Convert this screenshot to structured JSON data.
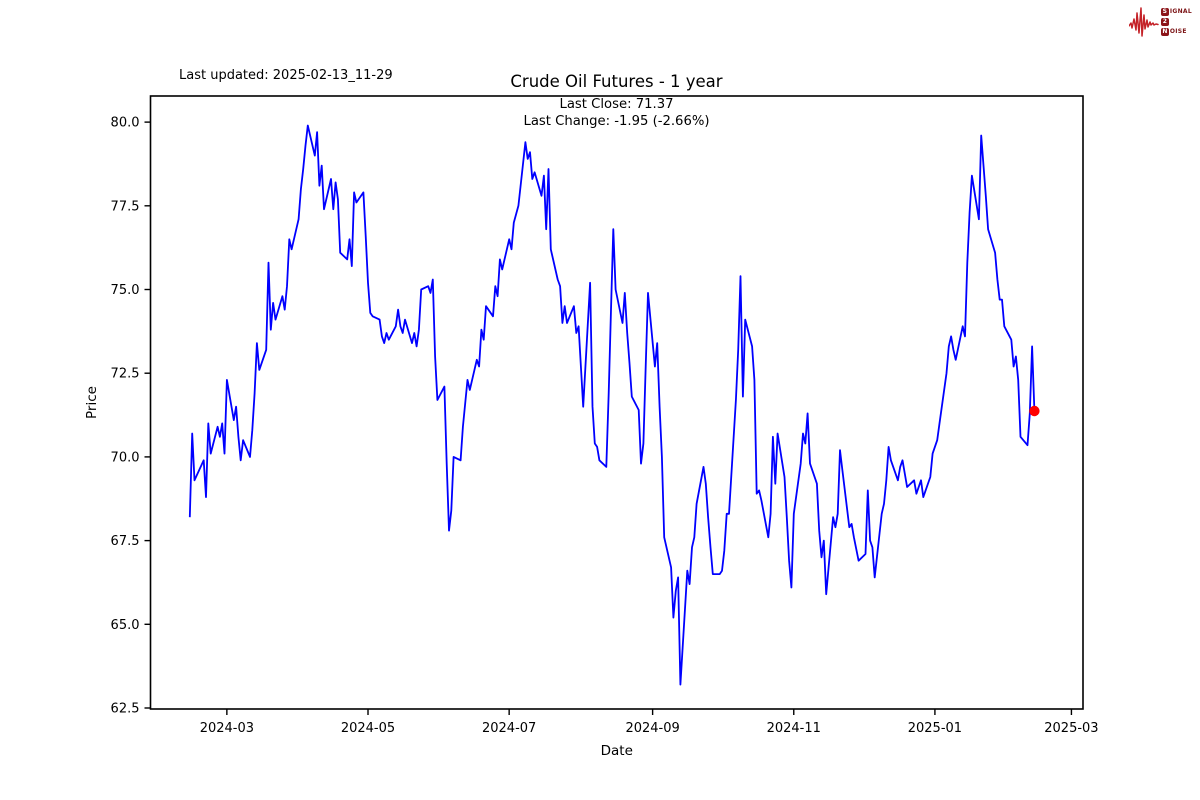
{
  "header": {
    "last_updated": "Last updated: 2025-02-13_11-29",
    "title": "Crude Oil Futures - 1 year"
  },
  "logo": {
    "s": "S",
    "ignal": "IGNAL",
    "two": "2",
    "n": "N",
    "oise": "OISE",
    "waveform_color": "#c42127",
    "box_color": "#8c1519",
    "text_color": "#7c1416"
  },
  "chart_data": {
    "type": "line",
    "title": "Crude Oil Futures - 1 year",
    "xlabel": "Date",
    "ylabel": "Price",
    "annotations": [
      "Last Close: 71.37",
      "Last Change: -1.95 (-2.66%)"
    ],
    "last_close": 71.37,
    "last_change": "-1.95 (-2.66%)",
    "line_color": "#0000ff",
    "marker_color": "#ff0000",
    "axis_color": "#000000",
    "grid": false,
    "legend": "none",
    "x_ticks": [
      "2024-03",
      "2024-05",
      "2024-07",
      "2024-09",
      "2024-11",
      "2025-01",
      "2025-03"
    ],
    "y_ticks": [
      62.5,
      65.0,
      67.5,
      70.0,
      72.5,
      75.0,
      77.5,
      80.0
    ],
    "xlim": [
      "2024-01-28",
      "2025-03-06"
    ],
    "ylim": [
      62.47,
      80.78
    ],
    "series": [
      {
        "name": "price",
        "points": [
          [
            "2024-02-14",
            68.2
          ],
          [
            "2024-02-15",
            70.7
          ],
          [
            "2024-02-16",
            69.3
          ],
          [
            "2024-02-20",
            69.9
          ],
          [
            "2024-02-21",
            68.8
          ],
          [
            "2024-02-22",
            71.0
          ],
          [
            "2024-02-23",
            70.1
          ],
          [
            "2024-02-26",
            70.9
          ],
          [
            "2024-02-27",
            70.6
          ],
          [
            "2024-02-28",
            71.0
          ],
          [
            "2024-02-29",
            70.1
          ],
          [
            "2024-03-01",
            72.3
          ],
          [
            "2024-03-04",
            71.1
          ],
          [
            "2024-03-05",
            71.5
          ],
          [
            "2024-03-06",
            70.6
          ],
          [
            "2024-03-07",
            69.9
          ],
          [
            "2024-03-08",
            70.5
          ],
          [
            "2024-03-11",
            70.0
          ],
          [
            "2024-03-12",
            70.8
          ],
          [
            "2024-03-13",
            71.9
          ],
          [
            "2024-03-14",
            73.4
          ],
          [
            "2024-03-15",
            72.6
          ],
          [
            "2024-03-18",
            73.2
          ],
          [
            "2024-03-19",
            75.8
          ],
          [
            "2024-03-20",
            73.8
          ],
          [
            "2024-03-21",
            74.6
          ],
          [
            "2024-03-22",
            74.1
          ],
          [
            "2024-03-25",
            74.8
          ],
          [
            "2024-03-26",
            74.4
          ],
          [
            "2024-03-27",
            75.1
          ],
          [
            "2024-03-28",
            76.5
          ],
          [
            "2024-03-29",
            76.2
          ],
          [
            "2024-04-01",
            77.1
          ],
          [
            "2024-04-02",
            78.0
          ],
          [
            "2024-04-03",
            78.6
          ],
          [
            "2024-04-04",
            79.3
          ],
          [
            "2024-04-05",
            79.9
          ],
          [
            "2024-04-08",
            79.0
          ],
          [
            "2024-04-09",
            79.7
          ],
          [
            "2024-04-10",
            78.1
          ],
          [
            "2024-04-11",
            78.7
          ],
          [
            "2024-04-12",
            77.4
          ],
          [
            "2024-04-15",
            78.3
          ],
          [
            "2024-04-16",
            77.4
          ],
          [
            "2024-04-17",
            78.2
          ],
          [
            "2024-04-18",
            77.7
          ],
          [
            "2024-04-19",
            76.1
          ],
          [
            "2024-04-22",
            75.9
          ],
          [
            "2024-04-23",
            76.5
          ],
          [
            "2024-04-24",
            75.7
          ],
          [
            "2024-04-25",
            77.9
          ],
          [
            "2024-04-26",
            77.6
          ],
          [
            "2024-04-29",
            77.9
          ],
          [
            "2024-04-30",
            76.6
          ],
          [
            "2024-05-01",
            75.2
          ],
          [
            "2024-05-02",
            74.3
          ],
          [
            "2024-05-03",
            74.2
          ],
          [
            "2024-05-06",
            74.1
          ],
          [
            "2024-05-07",
            73.6
          ],
          [
            "2024-05-08",
            73.4
          ],
          [
            "2024-05-09",
            73.7
          ],
          [
            "2024-05-10",
            73.5
          ],
          [
            "2024-05-13",
            73.9
          ],
          [
            "2024-05-14",
            74.4
          ],
          [
            "2024-05-15",
            73.9
          ],
          [
            "2024-05-16",
            73.7
          ],
          [
            "2024-05-17",
            74.1
          ],
          [
            "2024-05-20",
            73.4
          ],
          [
            "2024-05-21",
            73.7
          ],
          [
            "2024-05-22",
            73.3
          ],
          [
            "2024-05-23",
            73.8
          ],
          [
            "2024-05-24",
            75.0
          ],
          [
            "2024-05-27",
            75.1
          ],
          [
            "2024-05-28",
            74.9
          ],
          [
            "2024-05-29",
            75.3
          ],
          [
            "2024-05-30",
            73.0
          ],
          [
            "2024-05-31",
            71.7
          ],
          [
            "2024-06-03",
            72.1
          ],
          [
            "2024-06-04",
            69.8
          ],
          [
            "2024-06-05",
            67.8
          ],
          [
            "2024-06-06",
            68.4
          ],
          [
            "2024-06-07",
            70.0
          ],
          [
            "2024-06-10",
            69.9
          ],
          [
            "2024-06-11",
            70.9
          ],
          [
            "2024-06-12",
            71.6
          ],
          [
            "2024-06-13",
            72.3
          ],
          [
            "2024-06-14",
            72.0
          ],
          [
            "2024-06-17",
            72.9
          ],
          [
            "2024-06-18",
            72.7
          ],
          [
            "2024-06-19",
            73.8
          ],
          [
            "2024-06-20",
            73.5
          ],
          [
            "2024-06-21",
            74.5
          ],
          [
            "2024-06-24",
            74.2
          ],
          [
            "2024-06-25",
            75.1
          ],
          [
            "2024-06-26",
            74.8
          ],
          [
            "2024-06-27",
            75.9
          ],
          [
            "2024-06-28",
            75.6
          ],
          [
            "2024-07-01",
            76.5
          ],
          [
            "2024-07-02",
            76.2
          ],
          [
            "2024-07-03",
            77.0
          ],
          [
            "2024-07-05",
            77.5
          ],
          [
            "2024-07-08",
            79.4
          ],
          [
            "2024-07-09",
            78.9
          ],
          [
            "2024-07-10",
            79.1
          ],
          [
            "2024-07-11",
            78.3
          ],
          [
            "2024-07-12",
            78.5
          ],
          [
            "2024-07-15",
            77.8
          ],
          [
            "2024-07-16",
            78.4
          ],
          [
            "2024-07-17",
            76.8
          ],
          [
            "2024-07-18",
            78.6
          ],
          [
            "2024-07-19",
            76.2
          ],
          [
            "2024-07-22",
            75.3
          ],
          [
            "2024-07-23",
            75.1
          ],
          [
            "2024-07-24",
            74.0
          ],
          [
            "2024-07-25",
            74.5
          ],
          [
            "2024-07-26",
            74.0
          ],
          [
            "2024-07-29",
            74.5
          ],
          [
            "2024-07-30",
            73.7
          ],
          [
            "2024-07-31",
            73.9
          ],
          [
            "2024-08-01",
            72.7
          ],
          [
            "2024-08-02",
            71.5
          ],
          [
            "2024-08-05",
            75.2
          ],
          [
            "2024-08-06",
            71.5
          ],
          [
            "2024-08-07",
            70.4
          ],
          [
            "2024-08-08",
            70.3
          ],
          [
            "2024-08-09",
            69.9
          ],
          [
            "2024-08-12",
            69.7
          ],
          [
            "2024-08-13",
            71.9
          ],
          [
            "2024-08-14",
            74.4
          ],
          [
            "2024-08-15",
            76.8
          ],
          [
            "2024-08-16",
            75.0
          ],
          [
            "2024-08-19",
            74.0
          ],
          [
            "2024-08-20",
            74.9
          ],
          [
            "2024-08-21",
            73.7
          ],
          [
            "2024-08-22",
            72.8
          ],
          [
            "2024-08-23",
            71.8
          ],
          [
            "2024-08-26",
            71.4
          ],
          [
            "2024-08-27",
            69.8
          ],
          [
            "2024-08-28",
            70.4
          ],
          [
            "2024-08-29",
            72.7
          ],
          [
            "2024-08-30",
            74.9
          ],
          [
            "2024-09-02",
            72.7
          ],
          [
            "2024-09-03",
            73.4
          ],
          [
            "2024-09-04",
            71.5
          ],
          [
            "2024-09-05",
            70.0
          ],
          [
            "2024-09-06",
            67.6
          ],
          [
            "2024-09-09",
            66.7
          ],
          [
            "2024-09-10",
            65.2
          ],
          [
            "2024-09-11",
            66.0
          ],
          [
            "2024-09-12",
            66.4
          ],
          [
            "2024-09-13",
            63.2
          ],
          [
            "2024-09-16",
            66.6
          ],
          [
            "2024-09-17",
            66.2
          ],
          [
            "2024-09-18",
            67.3
          ],
          [
            "2024-09-19",
            67.6
          ],
          [
            "2024-09-20",
            68.6
          ],
          [
            "2024-09-23",
            69.7
          ],
          [
            "2024-09-24",
            69.2
          ],
          [
            "2024-09-25",
            68.2
          ],
          [
            "2024-09-26",
            67.3
          ],
          [
            "2024-09-27",
            66.5
          ],
          [
            "2024-09-30",
            66.5
          ],
          [
            "2024-10-01",
            66.6
          ],
          [
            "2024-10-02",
            67.2
          ],
          [
            "2024-10-03",
            68.3
          ],
          [
            "2024-10-04",
            68.3
          ],
          [
            "2024-10-07",
            71.7
          ],
          [
            "2024-10-08",
            73.2
          ],
          [
            "2024-10-09",
            75.4
          ],
          [
            "2024-10-10",
            71.8
          ],
          [
            "2024-10-11",
            74.1
          ],
          [
            "2024-10-14",
            73.3
          ],
          [
            "2024-10-15",
            72.3
          ],
          [
            "2024-10-16",
            68.9
          ],
          [
            "2024-10-17",
            69.0
          ],
          [
            "2024-10-18",
            68.7
          ],
          [
            "2024-10-21",
            67.6
          ],
          [
            "2024-10-22",
            68.3
          ],
          [
            "2024-10-23",
            70.6
          ],
          [
            "2024-10-24",
            69.2
          ],
          [
            "2024-10-25",
            70.7
          ],
          [
            "2024-10-28",
            69.4
          ],
          [
            "2024-10-29",
            68.2
          ],
          [
            "2024-10-30",
            66.9
          ],
          [
            "2024-10-31",
            66.1
          ],
          [
            "2024-11-01",
            68.3
          ],
          [
            "2024-11-04",
            69.8
          ],
          [
            "2024-11-05",
            70.7
          ],
          [
            "2024-11-06",
            70.4
          ],
          [
            "2024-11-07",
            71.3
          ],
          [
            "2024-11-08",
            69.8
          ],
          [
            "2024-11-11",
            69.2
          ],
          [
            "2024-11-12",
            67.8
          ],
          [
            "2024-11-13",
            67.0
          ],
          [
            "2024-11-14",
            67.5
          ],
          [
            "2024-11-15",
            65.9
          ],
          [
            "2024-11-18",
            68.2
          ],
          [
            "2024-11-19",
            67.9
          ],
          [
            "2024-11-20",
            68.3
          ],
          [
            "2024-11-21",
            70.2
          ],
          [
            "2024-11-22",
            69.6
          ],
          [
            "2024-11-25",
            67.9
          ],
          [
            "2024-11-26",
            68.0
          ],
          [
            "2024-11-27",
            67.6
          ],
          [
            "2024-11-29",
            66.9
          ],
          [
            "2024-12-02",
            67.1
          ],
          [
            "2024-12-03",
            69.0
          ],
          [
            "2024-12-04",
            67.5
          ],
          [
            "2024-12-05",
            67.3
          ],
          [
            "2024-12-06",
            66.4
          ],
          [
            "2024-12-09",
            68.3
          ],
          [
            "2024-12-10",
            68.6
          ],
          [
            "2024-12-11",
            69.3
          ],
          [
            "2024-12-12",
            70.3
          ],
          [
            "2024-12-13",
            69.9
          ],
          [
            "2024-12-16",
            69.3
          ],
          [
            "2024-12-17",
            69.7
          ],
          [
            "2024-12-18",
            69.9
          ],
          [
            "2024-12-19",
            69.5
          ],
          [
            "2024-12-20",
            69.1
          ],
          [
            "2024-12-23",
            69.3
          ],
          [
            "2024-12-24",
            68.9
          ],
          [
            "2024-12-26",
            69.3
          ],
          [
            "2024-12-27",
            68.8
          ],
          [
            "2024-12-30",
            69.4
          ],
          [
            "2024-12-31",
            70.1
          ],
          [
            "2025-01-02",
            70.5
          ],
          [
            "2025-01-03",
            71.0
          ],
          [
            "2025-01-06",
            72.5
          ],
          [
            "2025-01-07",
            73.3
          ],
          [
            "2025-01-08",
            73.6
          ],
          [
            "2025-01-09",
            73.2
          ],
          [
            "2025-01-10",
            72.9
          ],
          [
            "2025-01-13",
            73.9
          ],
          [
            "2025-01-14",
            73.6
          ],
          [
            "2025-01-15",
            75.8
          ],
          [
            "2025-01-16",
            77.3
          ],
          [
            "2025-01-17",
            78.4
          ],
          [
            "2025-01-20",
            77.1
          ],
          [
            "2025-01-21",
            79.6
          ],
          [
            "2025-01-22",
            78.7
          ],
          [
            "2025-01-23",
            77.8
          ],
          [
            "2025-01-24",
            76.8
          ],
          [
            "2025-01-27",
            76.1
          ],
          [
            "2025-01-28",
            75.3
          ],
          [
            "2025-01-29",
            74.7
          ],
          [
            "2025-01-30",
            74.7
          ],
          [
            "2025-01-31",
            73.9
          ],
          [
            "2025-02-03",
            73.5
          ],
          [
            "2025-02-04",
            72.7
          ],
          [
            "2025-02-05",
            73.0
          ],
          [
            "2025-02-06",
            72.3
          ],
          [
            "2025-02-07",
            70.6
          ],
          [
            "2025-02-10",
            70.35
          ],
          [
            "2025-02-11",
            71.3
          ],
          [
            "2025-02-12",
            73.3
          ],
          [
            "2025-02-13",
            71.37
          ]
        ]
      }
    ]
  }
}
